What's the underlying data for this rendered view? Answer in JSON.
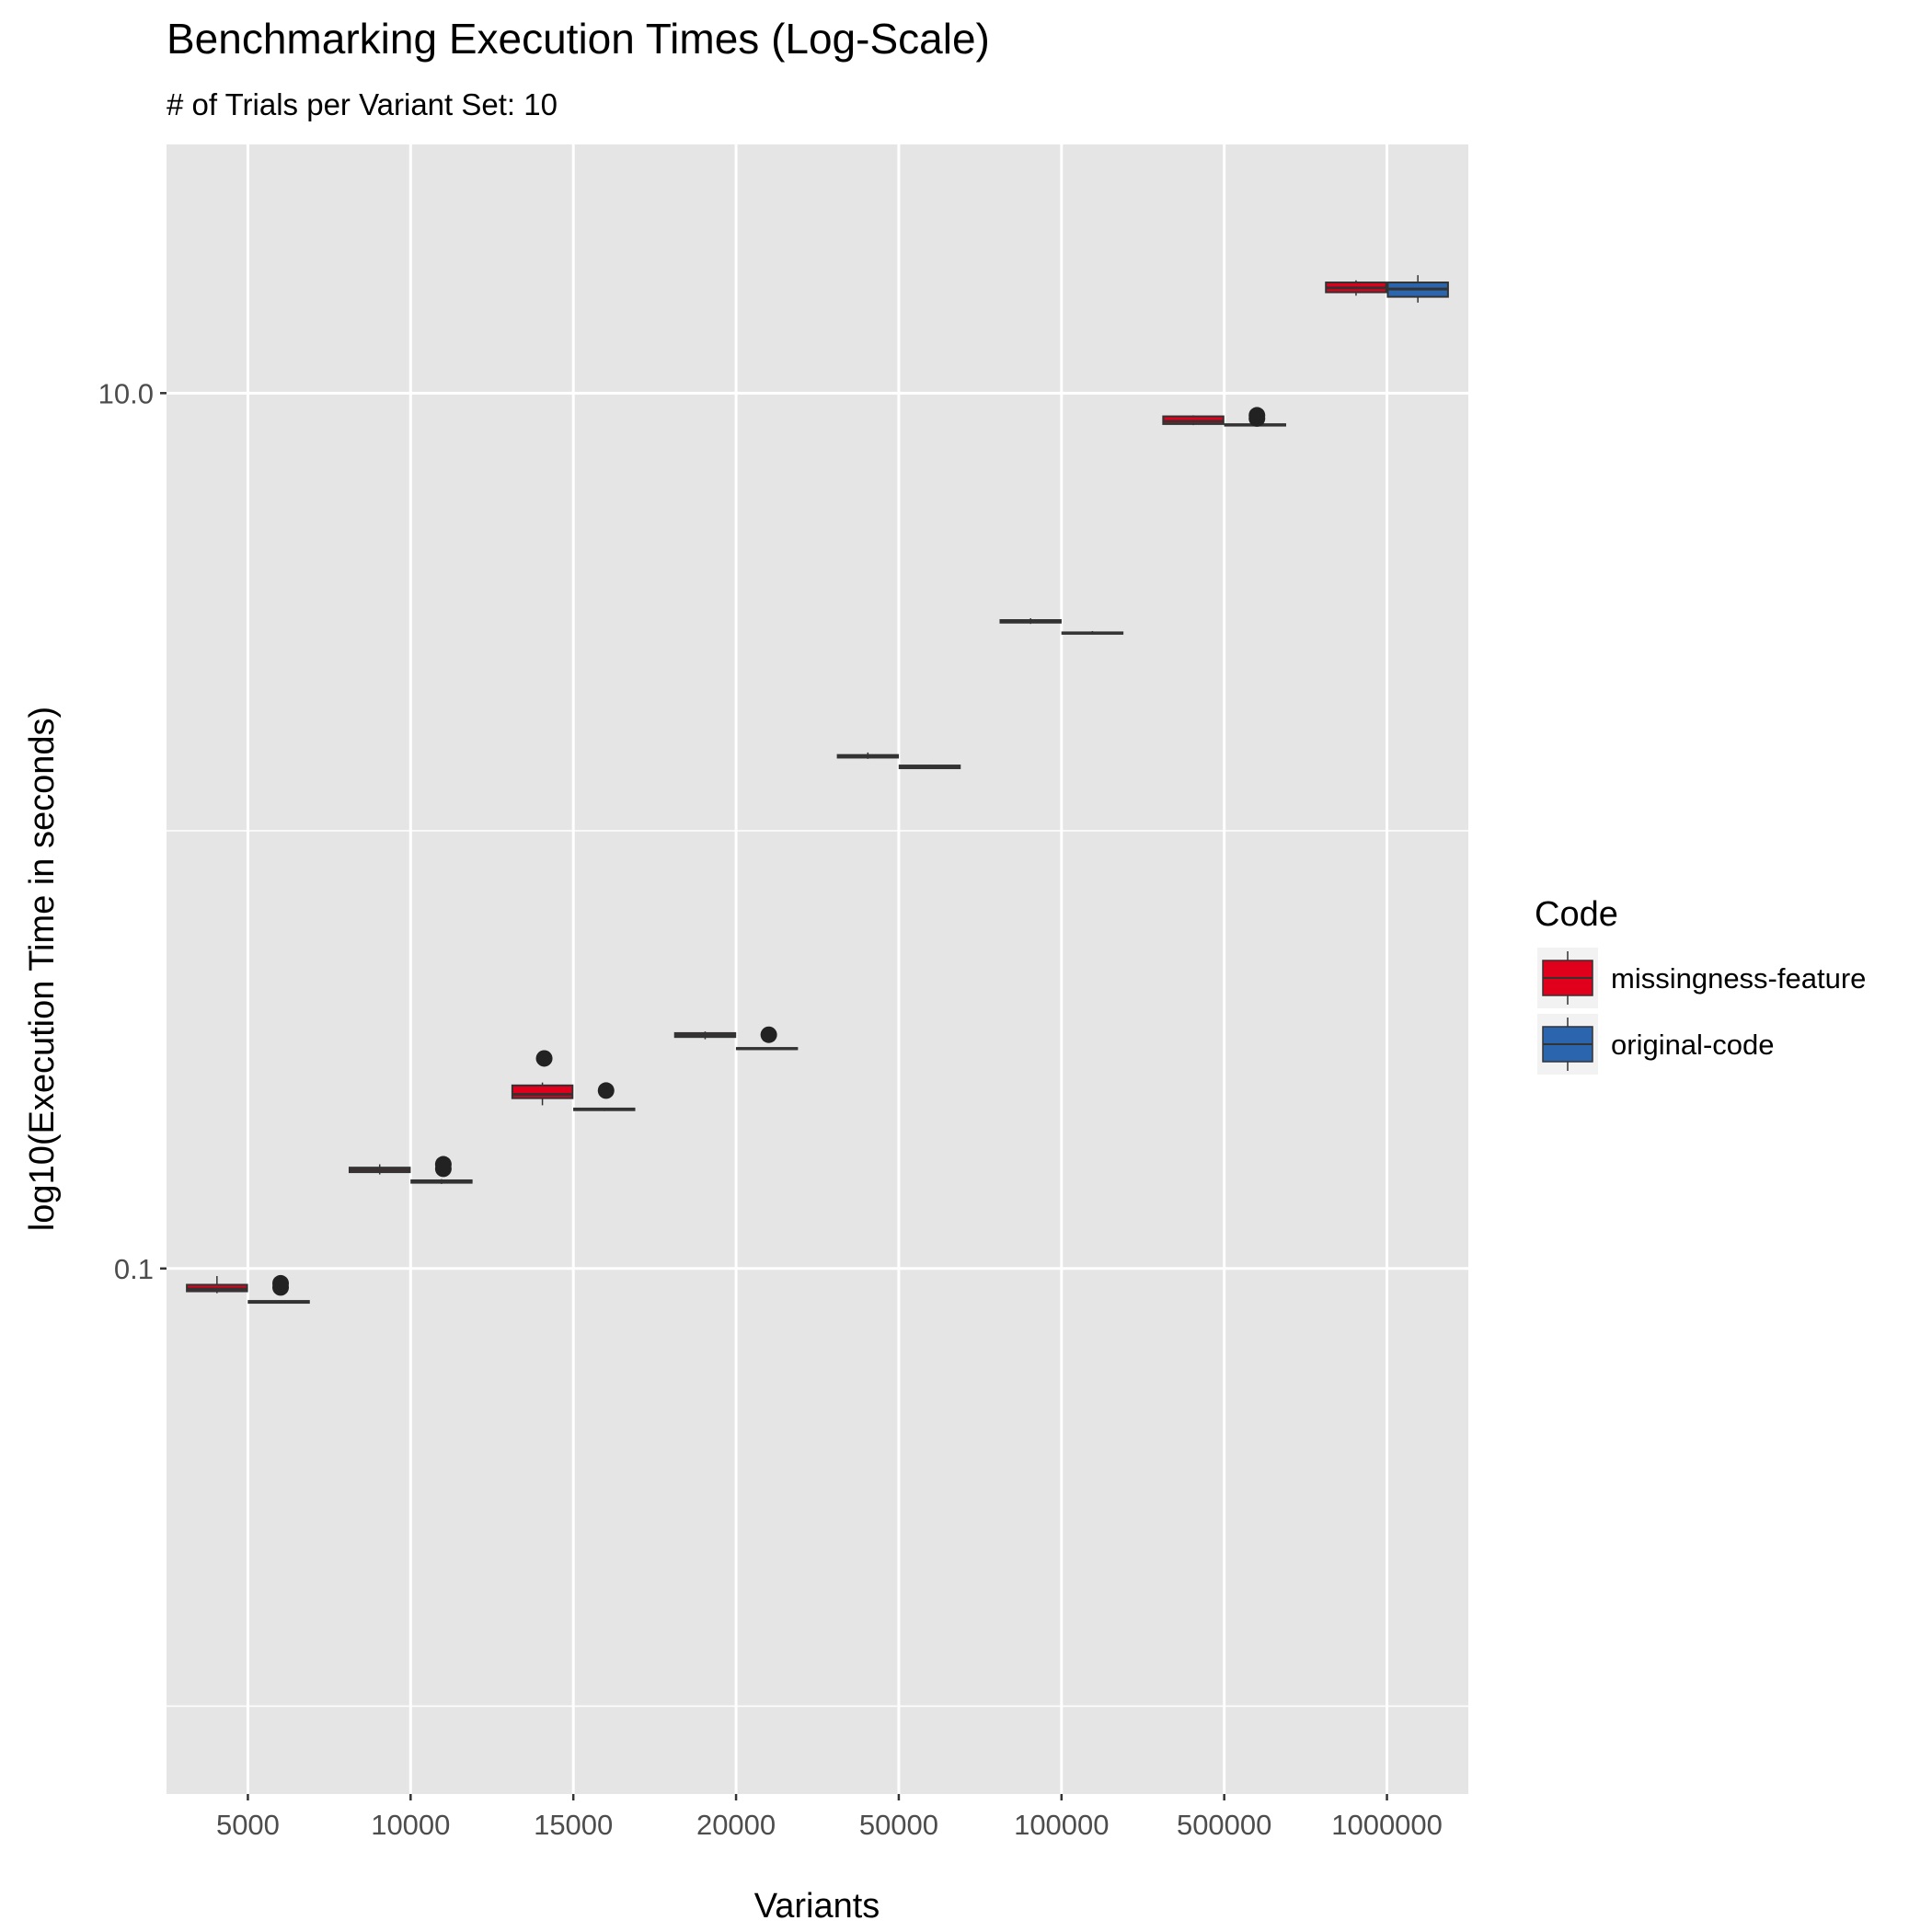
{
  "chart_data": {
    "type": "box",
    "title": "Benchmarking Execution Times (Log-Scale)",
    "subtitle": "# of Trials per Variant Set: 10",
    "xlabel": "Variants",
    "ylabel": "log10(Execution Time in seconds)",
    "y_scale": "log10",
    "ylim": [
      0.0063,
      37
    ],
    "y_ticks": [
      {
        "value": 0.1,
        "label": "0.1"
      },
      {
        "value": 10,
        "label": "10.0"
      }
    ],
    "y_minor_gridlines": [
      0.01,
      1
    ],
    "grid": true,
    "categories": [
      "5000",
      "10000",
      "15000",
      "20000",
      "50000",
      "100000",
      "500000",
      "1000000"
    ],
    "legend": {
      "title": "Code",
      "position": "right",
      "entries": [
        {
          "label": "missingness-feature",
          "color": "#e0001b"
        },
        {
          "label": "original-code",
          "color": "#2b65ad"
        }
      ]
    },
    "series": [
      {
        "name": "missingness-feature",
        "color": "#e0001b",
        "boxes": [
          {
            "q1": 0.0887,
            "median": 0.0898,
            "q3": 0.0918,
            "whisker_low": 0.0878,
            "whisker_high": 0.0961,
            "outliers": []
          },
          {
            "q1": 0.166,
            "median": 0.168,
            "q3": 0.17,
            "whisker_low": 0.164,
            "whisker_high": 0.173,
            "outliers": []
          },
          {
            "q1": 0.245,
            "median": 0.25,
            "q3": 0.262,
            "whisker_low": 0.236,
            "whisker_high": 0.266,
            "outliers": [
              0.302
            ]
          },
          {
            "q1": 0.338,
            "median": 0.341,
            "q3": 0.345,
            "whisker_low": 0.334,
            "whisker_high": 0.348,
            "outliers": []
          },
          {
            "q1": 1.47,
            "median": 1.48,
            "q3": 1.49,
            "whisker_low": 1.46,
            "whisker_high": 1.51,
            "outliers": []
          },
          {
            "q1": 2.99,
            "median": 3.01,
            "q3": 3.03,
            "whisker_low": 2.97,
            "whisker_high": 3.06,
            "outliers": []
          },
          {
            "q1": 8.5,
            "median": 8.62,
            "q3": 8.85,
            "whisker_low": 8.45,
            "whisker_high": 8.9,
            "outliers": []
          },
          {
            "q1": 17.0,
            "median": 17.4,
            "q3": 17.9,
            "whisker_low": 16.7,
            "whisker_high": 18.1,
            "outliers": []
          }
        ]
      },
      {
        "name": "original-code",
        "color": "#2b65ad",
        "boxes": [
          {
            "q1": 0.0835,
            "median": 0.0839,
            "q3": 0.0843,
            "whisker_low": 0.0832,
            "whisker_high": 0.0846,
            "outliers": [
              0.0905,
              0.0925
            ]
          },
          {
            "q1": 0.157,
            "median": 0.158,
            "q3": 0.159,
            "whisker_low": 0.156,
            "whisker_high": 0.16,
            "outliers": [
              0.169,
              0.173
            ]
          },
          {
            "q1": 0.23,
            "median": 0.231,
            "q3": 0.232,
            "whisker_low": 0.229,
            "whisker_high": 0.233,
            "outliers": [
              0.255
            ]
          },
          {
            "q1": 0.317,
            "median": 0.318,
            "q3": 0.319,
            "whisker_low": 0.316,
            "whisker_high": 0.32,
            "outliers": [
              0.342
            ]
          },
          {
            "q1": 1.39,
            "median": 1.4,
            "q3": 1.41,
            "whisker_low": 1.385,
            "whisker_high": 1.415,
            "outliers": []
          },
          {
            "q1": 2.82,
            "median": 2.83,
            "q3": 2.84,
            "whisker_low": 2.81,
            "whisker_high": 2.86,
            "outliers": []
          },
          {
            "q1": 8.43,
            "median": 8.46,
            "q3": 8.49,
            "whisker_low": 8.4,
            "whisker_high": 8.52,
            "outliers": [
              8.75,
              8.9
            ]
          },
          {
            "q1": 16.6,
            "median": 17.3,
            "q3": 17.9,
            "whisker_low": 16.1,
            "whisker_high": 18.6,
            "outliers": []
          }
        ]
      }
    ]
  }
}
